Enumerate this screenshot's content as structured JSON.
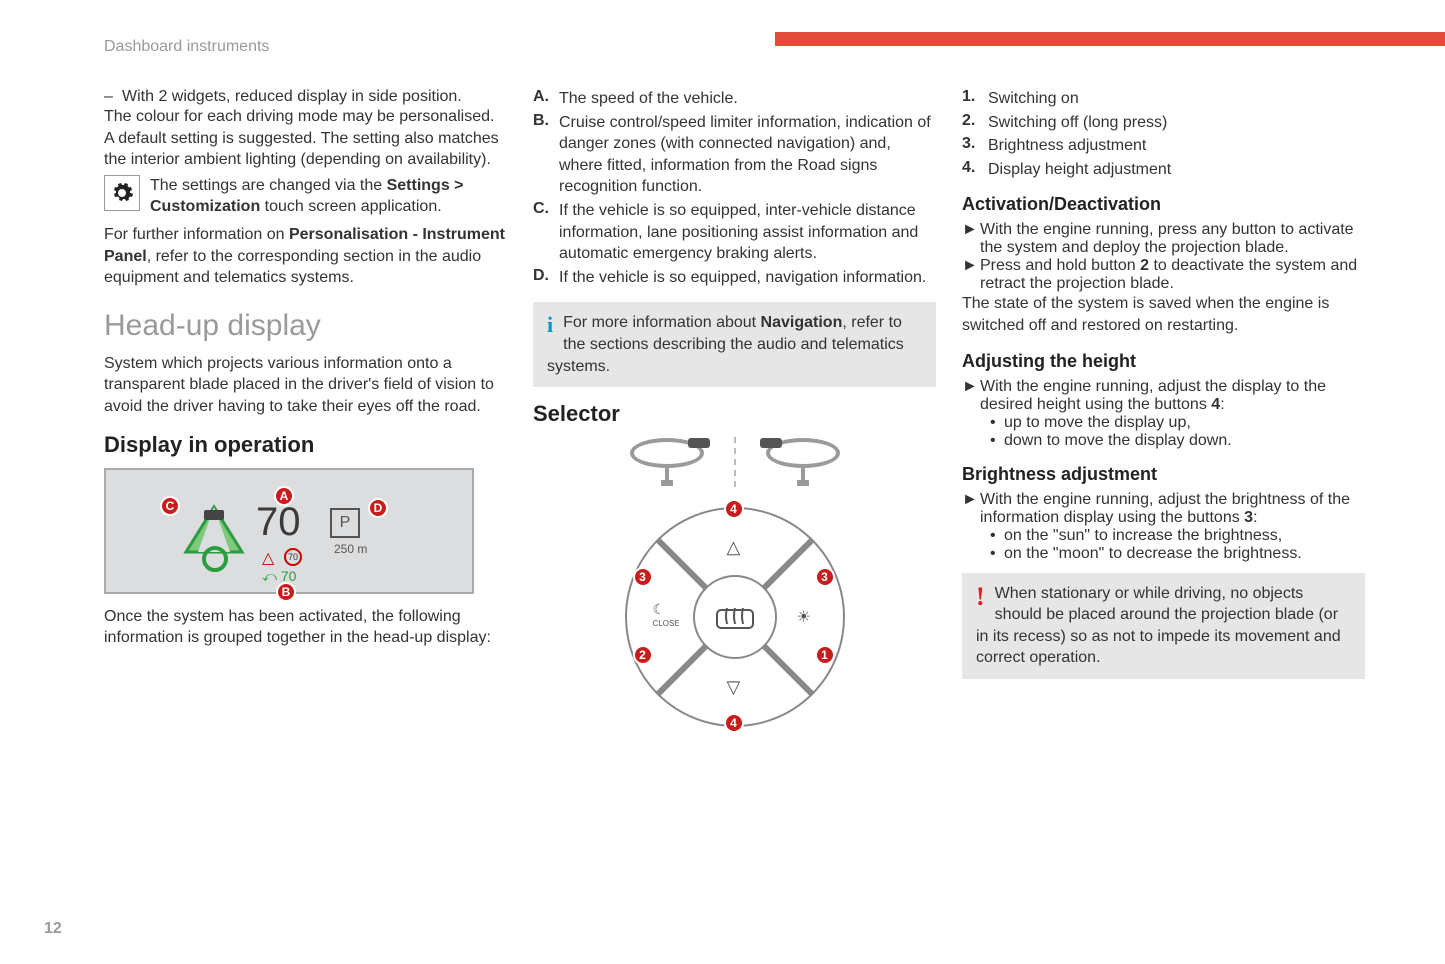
{
  "colors": {
    "accent": "#e14c3a",
    "muted": "#9a9a9a",
    "text": "#333333",
    "callout_bg": "#e6e6e6",
    "info_icon": "#0099cc",
    "warn_icon": "#d62020",
    "hud_green": "#2a9d3e",
    "badge_red": "#c91d1d"
  },
  "page_number": "12",
  "header": {
    "section_label": "Dashboard instruments"
  },
  "col1": {
    "dash_item": "With 2 widgets, reduced display in side position.",
    "para1": "The colour for each driving mode may be personalised. A default setting is suggested. The setting also matches the interior ambient lighting (depending on availability).",
    "gear_line1": "The settings are changed via the ",
    "gear_bold": "Settings > Customization",
    "gear_line2": " touch screen application.",
    "para2a": "For further information on ",
    "para2_bold": "Personalisation - Instrument Panel",
    "para2b": ", refer to the corresponding section in the audio equipment and telematics systems.",
    "h1": "Head-up display",
    "hud_para": "System which projects various information onto a transparent blade placed in the driver's field of vision to avoid the driver having to take their eyes off the road.",
    "h2": "Display in operation",
    "hud_fig": {
      "speed": "70",
      "sign": "P",
      "distance": "250 m",
      "mini_sign": "70",
      "sign2_text": "⤺ 70",
      "labels": {
        "A": "A",
        "B": "B",
        "C": "C",
        "D": "D"
      }
    },
    "after_fig": "Once the system has been activated, the following information is grouped together in the head-up display:"
  },
  "col2": {
    "list": [
      {
        "lbl": "A.",
        "txt": "The speed of the vehicle."
      },
      {
        "lbl": "B.",
        "txt": "Cruise control/speed limiter information, indication of danger zones (with connected navigation) and, where fitted, information from the Road signs recognition function."
      },
      {
        "lbl": "C.",
        "txt": "If the vehicle is so equipped, inter-vehicle distance information, lane positioning assist information and automatic emergency braking alerts."
      },
      {
        "lbl": "D.",
        "txt": "If the vehicle is so equipped, navigation information."
      }
    ],
    "callout_a": "For more information about ",
    "callout_bold": "Navigation",
    "callout_b": ", refer to the sections describing the audio and telematics systems.",
    "h2": "Selector",
    "dial": {
      "labels": {
        "b1": "1",
        "b2": "2",
        "b3": "3",
        "b4": "4"
      },
      "moon_label": "CLOSE"
    }
  },
  "col3": {
    "num_list": [
      {
        "lbl": "1.",
        "txt": "Switching on"
      },
      {
        "lbl": "2.",
        "txt": "Switching off (long press)"
      },
      {
        "lbl": "3.",
        "txt": "Brightness adjustment"
      },
      {
        "lbl": "4.",
        "txt": "Display height adjustment"
      }
    ],
    "h3_act": "Activation/Deactivation",
    "act1": "With the engine running, press any button to activate the system and deploy the projection blade.",
    "act2a": "Press and hold button ",
    "act2_bold": "2",
    "act2b": " to deactivate the system and retract the projection blade.",
    "act_state": "The state of the system is saved when the engine is switched off and restored on restarting.",
    "h3_height": "Adjusting the height",
    "height1a": "With the engine running, adjust the display to the desired height using the buttons ",
    "height1_bold": "4",
    "height1b": ":",
    "height_bullets": [
      "up to move the display up,",
      "down to move the display down."
    ],
    "h3_bright": "Brightness adjustment",
    "bright1a": "With the engine running, adjust the brightness of the information display using the buttons ",
    "bright1_bold": "3",
    "bright1b": ":",
    "bright_bullets": [
      "on the \"sun\" to increase the brightness,",
      "on the \"moon\" to decrease the brightness."
    ],
    "warn": "When stationary or while driving, no objects should be placed around the projection blade (or in its recess) so as not to impede its movement and correct operation."
  }
}
